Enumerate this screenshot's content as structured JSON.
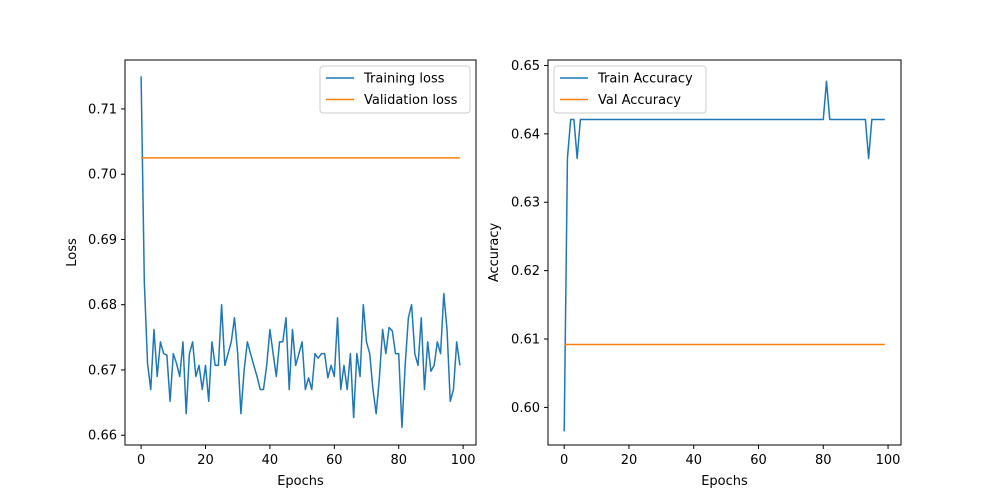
{
  "chart_data": [
    {
      "type": "line",
      "title": "",
      "xlabel": "Epochs",
      "ylabel": "Loss",
      "xlim": [
        -5,
        104
      ],
      "ylim": [
        0.6585,
        0.7175
      ],
      "xticks": [
        0,
        20,
        40,
        60,
        80,
        100
      ],
      "yticks": [
        0.66,
        0.67,
        0.68,
        0.69,
        0.7,
        0.71
      ],
      "ytick_format": 2,
      "grid": false,
      "legend_position": "upper right",
      "x": [
        0,
        1,
        2,
        3,
        4,
        5,
        6,
        7,
        8,
        9,
        10,
        11,
        12,
        13,
        14,
        15,
        16,
        17,
        18,
        19,
        20,
        21,
        22,
        23,
        24,
        25,
        26,
        27,
        28,
        29,
        30,
        31,
        32,
        33,
        34,
        35,
        36,
        37,
        38,
        39,
        40,
        41,
        42,
        43,
        44,
        45,
        46,
        47,
        48,
        49,
        50,
        51,
        52,
        53,
        54,
        55,
        56,
        57,
        58,
        59,
        60,
        61,
        62,
        63,
        64,
        65,
        66,
        67,
        68,
        69,
        70,
        71,
        72,
        73,
        74,
        75,
        76,
        77,
        78,
        79,
        80,
        81,
        82,
        83,
        84,
        85,
        86,
        87,
        88,
        89,
        90,
        91,
        92,
        93,
        94,
        95,
        96,
        97,
        98,
        99
      ],
      "series": [
        {
          "name": "Training loss",
          "color": "#1f77b4",
          "values": [
            0.715,
            0.6835,
            0.671,
            0.667,
            0.6762,
            0.669,
            0.6743,
            0.6725,
            0.6723,
            0.6652,
            0.6725,
            0.671,
            0.669,
            0.6743,
            0.6633,
            0.6725,
            0.6743,
            0.669,
            0.6707,
            0.667,
            0.6707,
            0.6652,
            0.6743,
            0.6707,
            0.6707,
            0.68,
            0.6707,
            0.6725,
            0.6743,
            0.678,
            0.6725,
            0.6633,
            0.67,
            0.6743,
            0.6725,
            0.6707,
            0.669,
            0.667,
            0.667,
            0.6707,
            0.6762,
            0.6725,
            0.669,
            0.6743,
            0.6743,
            0.678,
            0.667,
            0.6762,
            0.6707,
            0.6725,
            0.6743,
            0.667,
            0.6688,
            0.667,
            0.6725,
            0.6718,
            0.6725,
            0.6725,
            0.6688,
            0.6707,
            0.669,
            0.678,
            0.667,
            0.6707,
            0.667,
            0.6725,
            0.6627,
            0.6725,
            0.669,
            0.68,
            0.6743,
            0.6725,
            0.667,
            0.6633,
            0.6688,
            0.6762,
            0.6725,
            0.6765,
            0.676,
            0.6725,
            0.6725,
            0.6612,
            0.6707,
            0.678,
            0.68,
            0.6725,
            0.6707,
            0.678,
            0.667,
            0.6743,
            0.6698,
            0.6707,
            0.6743,
            0.6725,
            0.6817,
            0.6762,
            0.6652,
            0.667,
            0.6743,
            0.6707
          ]
        },
        {
          "name": "Validation loss",
          "color": "#ff7f0e",
          "values": [
            0.7025,
            0.7025,
            0.7025,
            0.7025,
            0.7025,
            0.7025,
            0.7025,
            0.7025,
            0.7025,
            0.7025,
            0.7025,
            0.7025,
            0.7025,
            0.7025,
            0.7025,
            0.7025,
            0.7025,
            0.7025,
            0.7025,
            0.7025,
            0.7025,
            0.7025,
            0.7025,
            0.7025,
            0.7025,
            0.7025,
            0.7025,
            0.7025,
            0.7025,
            0.7025,
            0.7025,
            0.7025,
            0.7025,
            0.7025,
            0.7025,
            0.7025,
            0.7025,
            0.7025,
            0.7025,
            0.7025,
            0.7025,
            0.7025,
            0.7025,
            0.7025,
            0.7025,
            0.7025,
            0.7025,
            0.7025,
            0.7025,
            0.7025,
            0.7025,
            0.7025,
            0.7025,
            0.7025,
            0.7025,
            0.7025,
            0.7025,
            0.7025,
            0.7025,
            0.7025,
            0.7025,
            0.7025,
            0.7025,
            0.7025,
            0.7025,
            0.7025,
            0.7025,
            0.7025,
            0.7025,
            0.7025,
            0.7025,
            0.7025,
            0.7025,
            0.7025,
            0.7025,
            0.7025,
            0.7025,
            0.7025,
            0.7025,
            0.7025,
            0.7025,
            0.7025,
            0.7025,
            0.7025,
            0.7025,
            0.7025,
            0.7025,
            0.7025,
            0.7025,
            0.7025,
            0.7025,
            0.7025,
            0.7025,
            0.7025,
            0.7025,
            0.7025,
            0.7025,
            0.7025,
            0.7025,
            0.7025
          ]
        }
      ]
    },
    {
      "type": "line",
      "title": "",
      "xlabel": "Epochs",
      "ylabel": "Accuracy",
      "xlim": [
        -5,
        104
      ],
      "ylim": [
        0.5945,
        0.6508
      ],
      "xticks": [
        0,
        20,
        40,
        60,
        80,
        100
      ],
      "yticks": [
        0.6,
        0.61,
        0.62,
        0.63,
        0.64,
        0.65
      ],
      "ytick_format": 2,
      "grid": false,
      "legend_position": "upper left",
      "x": [
        0,
        1,
        2,
        3,
        4,
        5,
        6,
        7,
        8,
        9,
        10,
        11,
        12,
        13,
        14,
        15,
        16,
        17,
        18,
        19,
        20,
        21,
        22,
        23,
        24,
        25,
        26,
        27,
        28,
        29,
        30,
        31,
        32,
        33,
        34,
        35,
        36,
        37,
        38,
        39,
        40,
        41,
        42,
        43,
        44,
        45,
        46,
        47,
        48,
        49,
        50,
        51,
        52,
        53,
        54,
        55,
        56,
        57,
        58,
        59,
        60,
        61,
        62,
        63,
        64,
        65,
        66,
        67,
        68,
        69,
        70,
        71,
        72,
        73,
        74,
        75,
        76,
        77,
        78,
        79,
        80,
        81,
        82,
        83,
        84,
        85,
        86,
        87,
        88,
        89,
        90,
        91,
        92,
        93,
        94,
        95,
        96,
        97,
        98,
        99
      ],
      "series": [
        {
          "name": "Train Accuracy",
          "color": "#1f77b4",
          "values": [
            0.5965,
            0.6364,
            0.6421,
            0.6421,
            0.6364,
            0.6421,
            0.6421,
            0.6421,
            0.6421,
            0.6421,
            0.6421,
            0.6421,
            0.6421,
            0.6421,
            0.6421,
            0.6421,
            0.6421,
            0.6421,
            0.6421,
            0.6421,
            0.6421,
            0.6421,
            0.6421,
            0.6421,
            0.6421,
            0.6421,
            0.6421,
            0.6421,
            0.6421,
            0.6421,
            0.6421,
            0.6421,
            0.6421,
            0.6421,
            0.6421,
            0.6421,
            0.6421,
            0.6421,
            0.6421,
            0.6421,
            0.6421,
            0.6421,
            0.6421,
            0.6421,
            0.6421,
            0.6421,
            0.6421,
            0.6421,
            0.6421,
            0.6421,
            0.6421,
            0.6421,
            0.6421,
            0.6421,
            0.6421,
            0.6421,
            0.6421,
            0.6421,
            0.6421,
            0.6421,
            0.6421,
            0.6421,
            0.6421,
            0.6421,
            0.6421,
            0.6421,
            0.6421,
            0.6421,
            0.6421,
            0.6421,
            0.6421,
            0.6421,
            0.6421,
            0.6421,
            0.6421,
            0.6421,
            0.6421,
            0.6421,
            0.6421,
            0.6421,
            0.6421,
            0.6477,
            0.6421,
            0.6421,
            0.6421,
            0.6421,
            0.6421,
            0.6421,
            0.6421,
            0.6421,
            0.6421,
            0.6421,
            0.6421,
            0.6421,
            0.6364,
            0.6421,
            0.6421,
            0.6421,
            0.6421,
            0.6421
          ]
        },
        {
          "name": "Val Accuracy",
          "color": "#ff7f0e",
          "values": [
            0.6092,
            0.6092,
            0.6092,
            0.6092,
            0.6092,
            0.6092,
            0.6092,
            0.6092,
            0.6092,
            0.6092,
            0.6092,
            0.6092,
            0.6092,
            0.6092,
            0.6092,
            0.6092,
            0.6092,
            0.6092,
            0.6092,
            0.6092,
            0.6092,
            0.6092,
            0.6092,
            0.6092,
            0.6092,
            0.6092,
            0.6092,
            0.6092,
            0.6092,
            0.6092,
            0.6092,
            0.6092,
            0.6092,
            0.6092,
            0.6092,
            0.6092,
            0.6092,
            0.6092,
            0.6092,
            0.6092,
            0.6092,
            0.6092,
            0.6092,
            0.6092,
            0.6092,
            0.6092,
            0.6092,
            0.6092,
            0.6092,
            0.6092,
            0.6092,
            0.6092,
            0.6092,
            0.6092,
            0.6092,
            0.6092,
            0.6092,
            0.6092,
            0.6092,
            0.6092,
            0.6092,
            0.6092,
            0.6092,
            0.6092,
            0.6092,
            0.6092,
            0.6092,
            0.6092,
            0.6092,
            0.6092,
            0.6092,
            0.6092,
            0.6092,
            0.6092,
            0.6092,
            0.6092,
            0.6092,
            0.6092,
            0.6092,
            0.6092,
            0.6092,
            0.6092,
            0.6092,
            0.6092,
            0.6092,
            0.6092,
            0.6092,
            0.6092,
            0.6092,
            0.6092,
            0.6092,
            0.6092,
            0.6092,
            0.6092,
            0.6092,
            0.6092,
            0.6092,
            0.6092,
            0.6092,
            0.6092
          ]
        }
      ]
    }
  ]
}
